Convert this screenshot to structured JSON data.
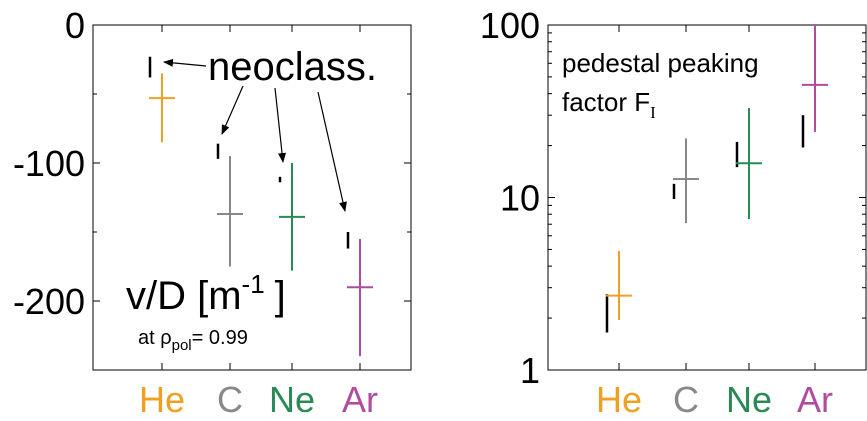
{
  "chart_data": [
    {
      "type": "scatter",
      "panel": "left",
      "categories": [
        "He",
        "C",
        "Ne",
        "Ar"
      ],
      "category_colors": [
        "#f0a020",
        "#888888",
        "#2a8a55",
        "#b04ca0"
      ],
      "ylim": [
        -250,
        0
      ],
      "yticks": [
        0,
        -100,
        -200
      ],
      "ytick_labels": [
        "0",
        "-100",
        "-200"
      ],
      "ylabel_main": "v/D [m",
      "ylabel_sup": "-1",
      "ylabel_close": "]",
      "annotation_prefix": "at ρ",
      "annotation_sub": "pol",
      "annotation_suffix": "= 0.99",
      "neoclass_label": "neoclass.",
      "experimental": [
        {
          "name": "He",
          "value": -53,
          "low": -85,
          "high": -35
        },
        {
          "name": "C",
          "value": -137,
          "low": -175,
          "high": -95
        },
        {
          "name": "Ne",
          "value": -139,
          "low": -178,
          "high": -100
        },
        {
          "name": "Ar",
          "value": -190,
          "low": -240,
          "high": -155
        }
      ],
      "neoclassical": [
        {
          "name": "He",
          "low": -38,
          "high": -23
        },
        {
          "name": "C",
          "low": -97,
          "high": -86
        },
        {
          "name": "Ne",
          "low": -114,
          "high": -110
        },
        {
          "name": "Ar",
          "low": -162,
          "high": -150
        }
      ],
      "grid": false
    },
    {
      "type": "scatter",
      "panel": "right",
      "scale": "log",
      "categories": [
        "He",
        "C",
        "Ne",
        "Ar"
      ],
      "category_colors": [
        "#f0a020",
        "#888888",
        "#2a8a55",
        "#b04ca0"
      ],
      "ylim": [
        1,
        100
      ],
      "yticks": [
        1,
        10,
        100
      ],
      "ytick_labels": [
        "1",
        "10",
        "100"
      ],
      "title_line1": "pedestal peaking",
      "title_line2": "factor F",
      "title_sub": "I",
      "experimental": [
        {
          "name": "He",
          "value": 2.7,
          "low": 1.95,
          "high": 4.9
        },
        {
          "name": "C",
          "value": 12.8,
          "low": 7.1,
          "high": 22
        },
        {
          "name": "Ne",
          "value": 15.8,
          "low": 7.5,
          "high": 33
        },
        {
          "name": "Ar",
          "value": 45,
          "low": 24,
          "high": 100
        }
      ],
      "neoclassical": [
        {
          "name": "He",
          "low": 1.65,
          "high": 2.75
        },
        {
          "name": "C",
          "low": 9.8,
          "high": 12
        },
        {
          "name": "Ne",
          "low": 15,
          "high": 21
        },
        {
          "name": "Ar",
          "low": 19.5,
          "high": 30
        }
      ],
      "grid": false
    }
  ]
}
